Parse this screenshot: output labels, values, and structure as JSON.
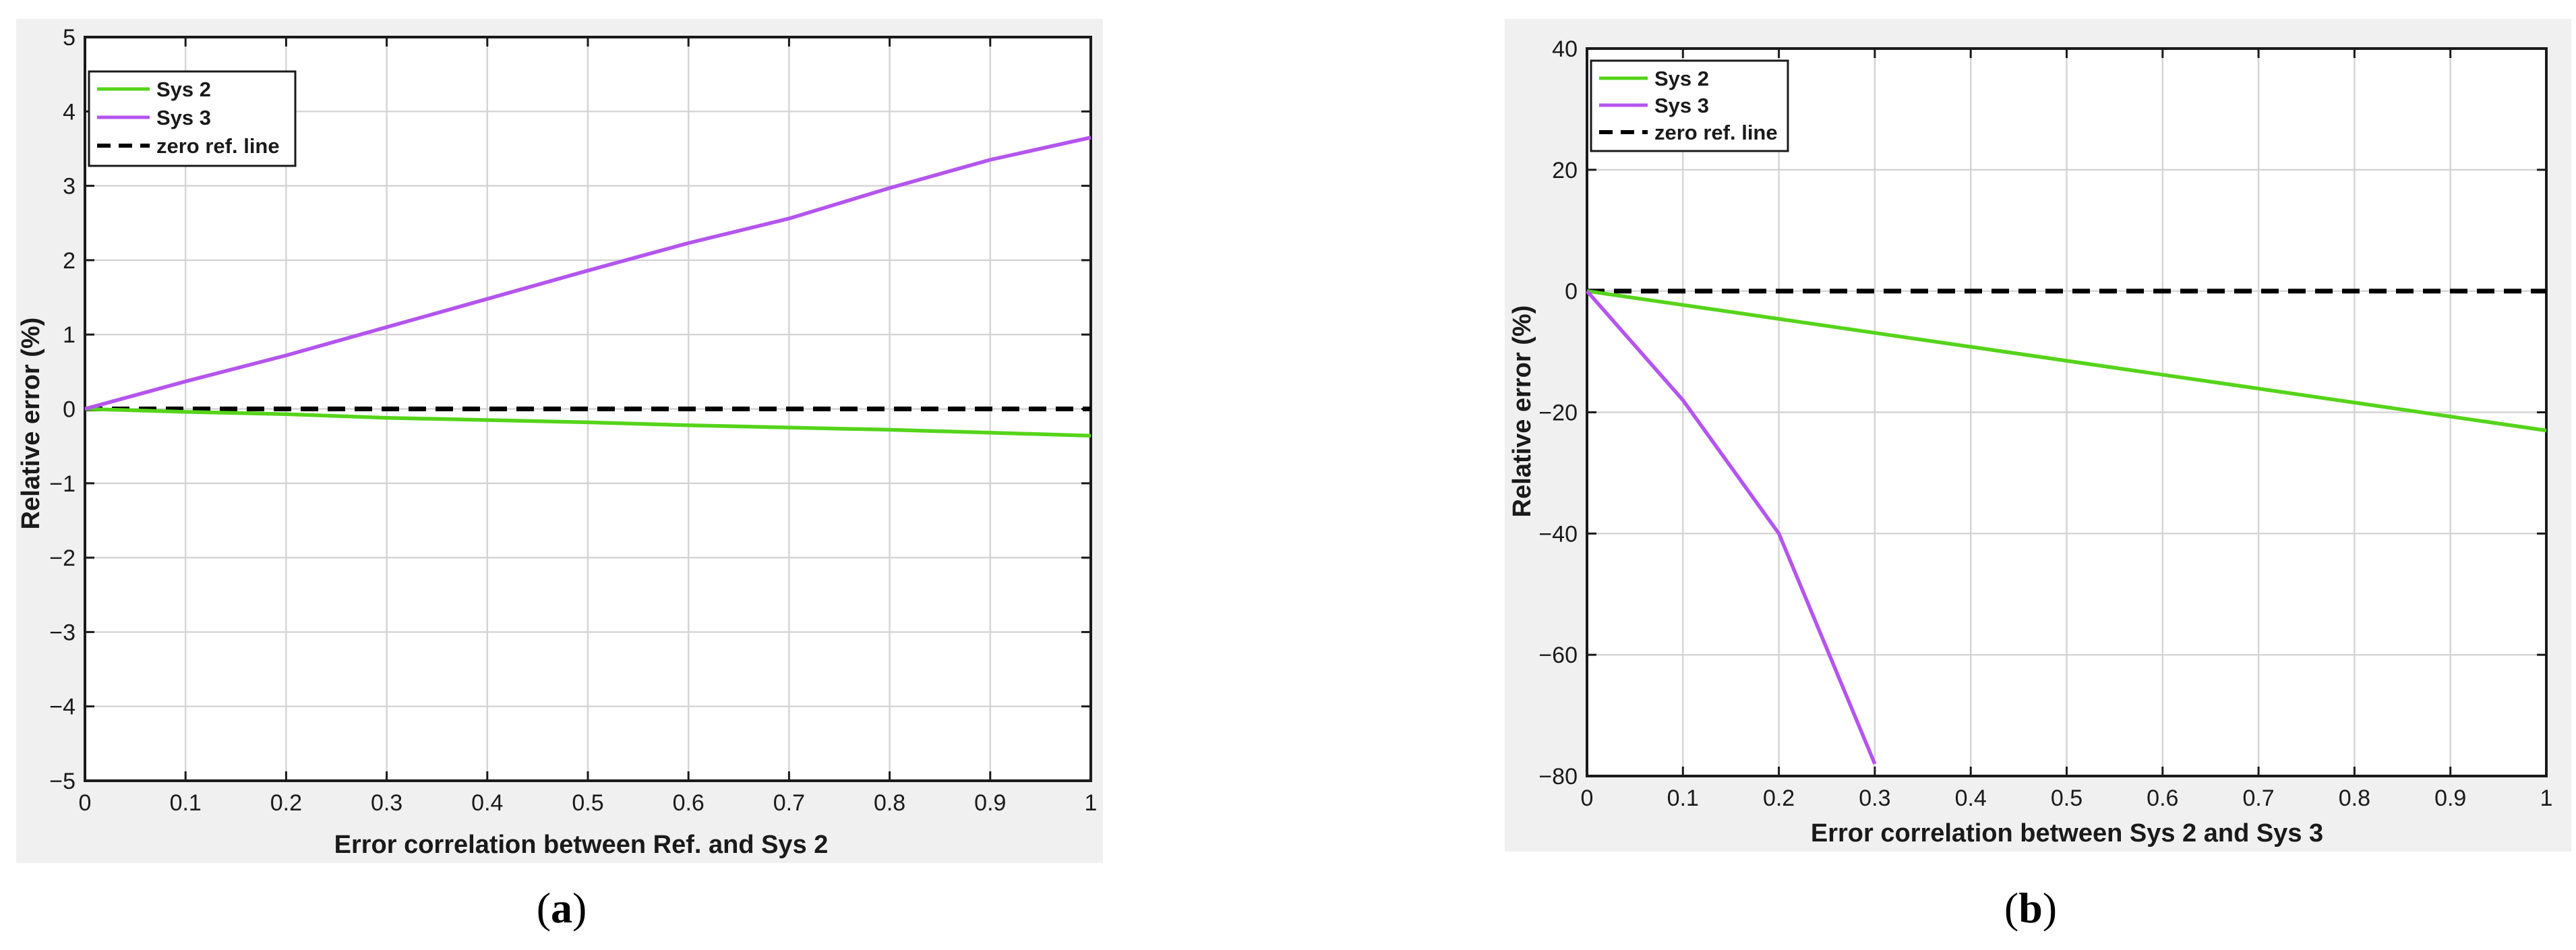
{
  "chart_data": [
    {
      "type": "line",
      "caption": "a",
      "xlabel": "Error correlation between Ref. and Sys 2",
      "ylabel": "Relative error (%)",
      "xlim": [
        0,
        1
      ],
      "ylim": [
        -5,
        5
      ],
      "xticks": [
        0,
        0.1,
        0.2,
        0.3,
        0.4,
        0.5,
        0.6,
        0.7,
        0.8,
        0.9,
        1
      ],
      "xtick_labels": [
        "0",
        "0.1",
        "0.2",
        "0.3",
        "0.4",
        "0.5",
        "0.6",
        "0.7",
        "0.8",
        "0.9",
        "1"
      ],
      "yticks": [
        -5,
        -4,
        -3,
        -2,
        -1,
        0,
        1,
        2,
        3,
        4,
        5
      ],
      "ytick_labels": [
        "−5",
        "−4",
        "−3",
        "−2",
        "−1",
        "0",
        "1",
        "2",
        "3",
        "4",
        "5"
      ],
      "grid": true,
      "legend_position": "top-left",
      "series": [
        {
          "name": "Sys 2",
          "color": "#55d41a",
          "dash": "solid",
          "x": [
            0,
            0.1,
            0.2,
            0.3,
            0.4,
            0.5,
            0.6,
            0.7,
            0.8,
            0.9,
            1
          ],
          "y": [
            0,
            -0.04,
            -0.07,
            -0.12,
            -0.15,
            -0.18,
            -0.22,
            -0.25,
            -0.28,
            -0.32,
            -0.36
          ]
        },
        {
          "name": "Sys 3",
          "color": "#b455ee",
          "dash": "solid",
          "x": [
            0,
            0.1,
            0.2,
            0.3,
            0.4,
            0.5,
            0.6,
            0.7,
            0.8,
            0.9,
            1
          ],
          "y": [
            0,
            0.37,
            0.72,
            1.1,
            1.48,
            1.86,
            2.23,
            2.56,
            2.97,
            3.35,
            3.65
          ]
        },
        {
          "name": "zero ref. line",
          "color": "#000000",
          "dash": "dashed",
          "x": [
            0,
            1
          ],
          "y": [
            0,
            0
          ]
        }
      ]
    },
    {
      "type": "line",
      "caption": "b",
      "xlabel": "Error correlation between Sys 2 and Sys 3",
      "ylabel": "Relative error (%)",
      "xlim": [
        0,
        1
      ],
      "ylim": [
        -80,
        40
      ],
      "xticks": [
        0,
        0.1,
        0.2,
        0.3,
        0.4,
        0.5,
        0.6,
        0.7,
        0.8,
        0.9,
        1
      ],
      "xtick_labels": [
        "0",
        "0.1",
        "0.2",
        "0.3",
        "0.4",
        "0.5",
        "0.6",
        "0.7",
        "0.8",
        "0.9",
        "1"
      ],
      "yticks": [
        -80,
        -60,
        -40,
        -20,
        0,
        20,
        40
      ],
      "ytick_labels": [
        "−80",
        "−60",
        "−40",
        "−20",
        "0",
        "20",
        "40"
      ],
      "grid": true,
      "legend_position": "top-left",
      "series": [
        {
          "name": "Sys 2",
          "color": "#55d41a",
          "dash": "solid",
          "x": [
            0,
            0.1,
            0.2,
            0.3,
            0.4,
            0.5,
            0.6,
            0.7,
            0.8,
            0.9,
            1
          ],
          "y": [
            0,
            -2.3,
            -4.6,
            -6.9,
            -9.2,
            -11.5,
            -13.8,
            -16.1,
            -18.4,
            -20.7,
            -23
          ]
        },
        {
          "name": "Sys 3",
          "color": "#b455ee",
          "dash": "solid",
          "x": [
            0,
            0.1,
            0.2,
            0.3
          ],
          "y": [
            0,
            -18,
            -40,
            -78
          ]
        },
        {
          "name": "zero ref. line",
          "color": "#000000",
          "dash": "dashed",
          "x": [
            0,
            1
          ],
          "y": [
            0,
            0
          ]
        }
      ]
    }
  ],
  "colors": {
    "panel_background": "#f0f0f0",
    "axes_background": "#ffffff",
    "grid": "#d4d4d4"
  }
}
